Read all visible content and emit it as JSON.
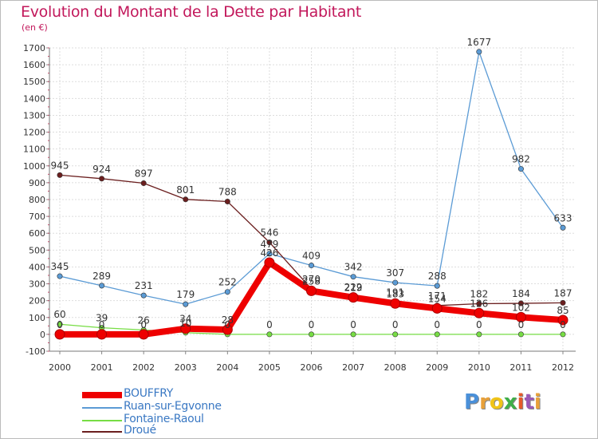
{
  "chart_data": {
    "type": "line",
    "title": "Evolution du Montant de la Dette par Habitant",
    "subtitle": "(en €)",
    "categories": [
      "2000",
      "2001",
      "2002",
      "2003",
      "2004",
      "2005",
      "2006",
      "2007",
      "2008",
      "2009",
      "2010",
      "2011",
      "2012"
    ],
    "ylim": [
      -100,
      1700
    ],
    "yticks": [
      -100,
      0,
      100,
      200,
      300,
      400,
      500,
      600,
      700,
      800,
      900,
      1000,
      1100,
      1200,
      1300,
      1400,
      1500,
      1600,
      1700
    ],
    "grid": true,
    "series": [
      {
        "name": "BOUFFRY",
        "color": "#ee0000",
        "values": [
          0,
          0,
          0,
          34,
          28,
          426,
          258,
          219,
          183,
          154,
          126,
          102,
          85
        ]
      },
      {
        "name": "Ruan-sur-Egvonne",
        "color": "#5b9bd5",
        "values": [
          345,
          289,
          231,
          179,
          252,
          479,
          409,
          342,
          307,
          288,
          1677,
          982,
          633
        ]
      },
      {
        "name": "Fontaine-Raoul",
        "color": "#77dd44",
        "values": [
          60,
          39,
          26,
          10,
          0,
          0,
          0,
          0,
          0,
          0,
          0,
          0,
          0
        ]
      },
      {
        "name": "Droué",
        "color": "#6b1f1f",
        "values": [
          945,
          924,
          897,
          801,
          788,
          546,
          270,
          222,
          191,
          171,
          182,
          184,
          187
        ]
      }
    ]
  },
  "header": {
    "title": "Evolution du Montant de la Dette par Habitant",
    "unit": "(en €)"
  },
  "legend": {
    "items": [
      "BOUFFRY",
      "Ruan-sur-Egvonne",
      "Fontaine-Raoul",
      "Droué"
    ]
  },
  "brand": {
    "letters": [
      "P",
      "r",
      "o",
      "x",
      "i",
      "t",
      "i"
    ],
    "colors": [
      "#4a90d9",
      "#e8a13a",
      "#f0c419",
      "#3fae49",
      "#e55a2b",
      "#9b59b6",
      "#e8a13a"
    ]
  }
}
